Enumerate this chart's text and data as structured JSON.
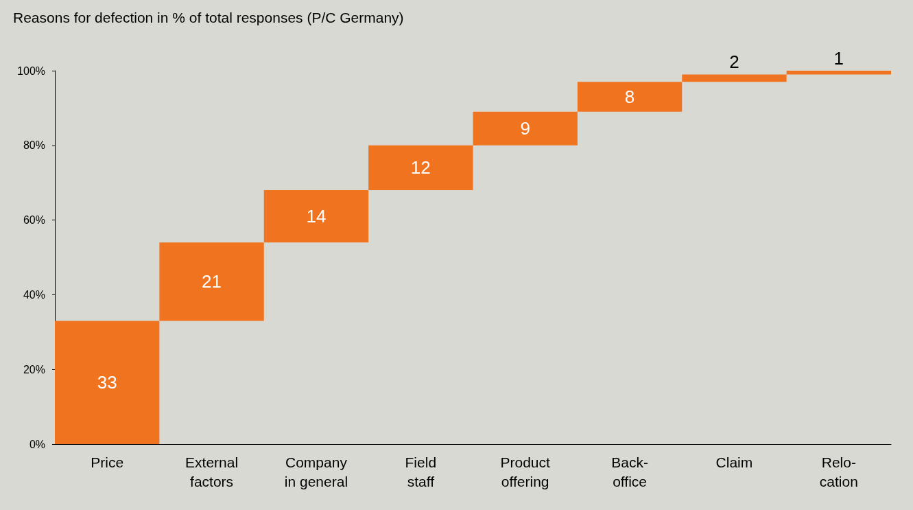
{
  "chart_data": {
    "type": "bar",
    "title": "Reasons for defection in % of total responses (P/C Germany)",
    "categories": [
      "Price",
      "External factors",
      "Company in general",
      "Field staff",
      "Product offering",
      "Back-office",
      "Claim",
      "Relo-cation"
    ],
    "values": [
      33,
      21,
      14,
      12,
      9,
      8,
      2,
      1
    ],
    "base": [
      0,
      33,
      54,
      68,
      80,
      89,
      97,
      99
    ],
    "color": "#f07320",
    "ylim": [
      0,
      100
    ],
    "yticks": [
      {
        "value": 0,
        "label": "0%"
      },
      {
        "value": 20,
        "label": "20%"
      },
      {
        "value": 40,
        "label": "40%"
      },
      {
        "value": 60,
        "label": "60%"
      },
      {
        "value": 80,
        "label": "80%"
      },
      {
        "value": 100,
        "label": "100%"
      }
    ],
    "data_labels": true,
    "grid": false
  }
}
